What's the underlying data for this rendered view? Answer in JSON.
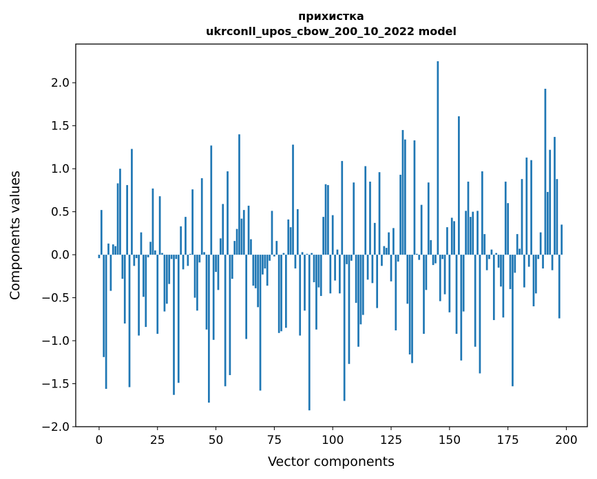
{
  "chart_data": {
    "type": "bar",
    "title_line1": "прихистка",
    "title_line2": "ukrconll_upos_cbow_200_10_2022 model",
    "xlabel": "Vector components",
    "ylabel": "Components values",
    "xlim": [
      -10,
      209
    ],
    "ylim": [
      -2.0,
      2.45
    ],
    "xticks": [
      0,
      25,
      50,
      75,
      100,
      125,
      150,
      175,
      200
    ],
    "yticks": [
      -2.0,
      -1.5,
      -1.0,
      -0.5,
      0.0,
      0.5,
      1.0,
      1.5,
      2.0
    ],
    "ytick_labels": [
      "−2.0",
      "−1.5",
      "−1.0",
      "−0.5",
      "0.0",
      "0.5",
      "1.0",
      "1.5",
      "2.0"
    ],
    "bar_color": "#1f77b4",
    "grid": false,
    "values": [
      -0.04,
      0.52,
      -1.19,
      -1.56,
      0.13,
      -0.42,
      0.12,
      0.1,
      0.83,
      1.0,
      -0.28,
      -0.8,
      0.81,
      -1.54,
      1.23,
      -0.13,
      -0.04,
      -0.94,
      0.26,
      -0.49,
      -0.84,
      -0.03,
      0.15,
      0.77,
      0.05,
      -0.92,
      0.68,
      0.02,
      -0.66,
      -0.57,
      -0.34,
      -0.05,
      -1.63,
      -0.05,
      -1.49,
      0.33,
      -0.17,
      0.44,
      -0.13,
      0.01,
      0.76,
      -0.5,
      -0.65,
      -0.09,
      0.89,
      0.03,
      -0.87,
      -1.72,
      1.27,
      -0.99,
      -0.2,
      -0.41,
      0.19,
      0.59,
      -1.53,
      0.97,
      -1.4,
      -0.28,
      0.16,
      0.3,
      1.4,
      0.42,
      0.52,
      -0.98,
      0.57,
      0.18,
      -0.36,
      -0.39,
      -0.61,
      -1.58,
      -0.23,
      -0.16,
      -0.36,
      -0.07,
      0.51,
      -0.02,
      0.16,
      -0.91,
      -0.89,
      0.02,
      -0.85,
      0.41,
      0.32,
      1.28,
      -0.16,
      0.53,
      -0.94,
      0.03,
      -0.65,
      0.01,
      -1.81,
      0.02,
      -0.32,
      -0.87,
      -0.38,
      -0.48,
      0.44,
      0.82,
      0.81,
      -0.45,
      0.46,
      -0.3,
      0.06,
      -0.45,
      1.09,
      -1.7,
      -0.11,
      -1.27,
      -0.07,
      0.84,
      -0.56,
      -1.07,
      -0.81,
      -0.7,
      1.03,
      -0.29,
      0.85,
      -0.33,
      0.37,
      -0.62,
      0.96,
      -0.13,
      0.1,
      0.08,
      0.26,
      -0.31,
      0.31,
      -0.88,
      -0.08,
      0.93,
      1.45,
      1.34,
      -0.57,
      -1.16,
      -1.26,
      1.33,
      0.01,
      -0.06,
      0.58,
      -0.92,
      -0.41,
      0.84,
      0.17,
      -0.12,
      -0.1,
      2.25,
      -0.54,
      -0.05,
      -0.46,
      0.32,
      -0.67,
      0.43,
      0.39,
      -0.92,
      1.61,
      -1.23,
      -0.66,
      0.51,
      0.85,
      0.44,
      0.5,
      -1.07,
      0.51,
      -1.38,
      0.97,
      0.24,
      -0.18,
      -0.05,
      0.06,
      -0.76,
      0.02,
      -0.15,
      -0.37,
      -0.73,
      0.85,
      0.6,
      -0.4,
      -1.53,
      -0.21,
      0.24,
      0.07,
      0.88,
      -0.38,
      1.13,
      -0.14,
      1.1,
      -0.6,
      -0.45,
      -0.05,
      0.26,
      -0.16,
      1.93,
      0.73,
      1.22,
      -0.18,
      1.37,
      0.88,
      -0.74,
      0.35
    ]
  }
}
